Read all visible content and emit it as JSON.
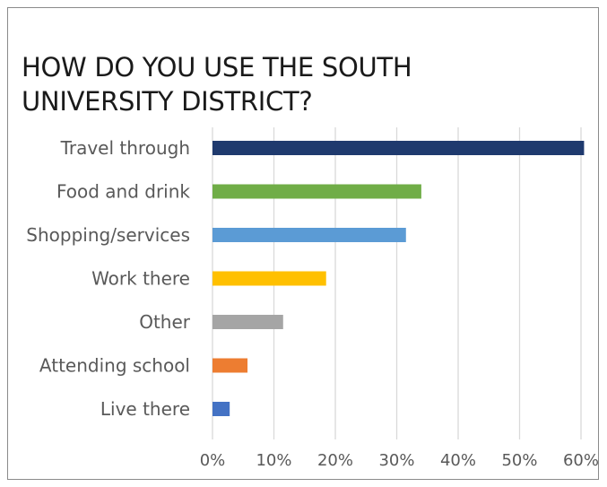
{
  "chart_data": {
    "type": "bar",
    "orientation": "horizontal",
    "title": "HOW DO YOU USE THE SOUTH\nUNIVERSITY DISTRICT?",
    "xlabel": "",
    "ylabel": "",
    "categories": [
      "Travel through",
      "Food and drink",
      "Shopping/services",
      "Work there",
      "Other",
      "Attending school",
      "Live there"
    ],
    "values": [
      60.5,
      34,
      31.5,
      18.5,
      11.5,
      5.7,
      2.8
    ],
    "colors": [
      "#1f3a6e",
      "#70ad47",
      "#5b9bd5",
      "#ffc000",
      "#a5a5a5",
      "#ed7d31",
      "#4472c4"
    ],
    "xlim": [
      0,
      60
    ],
    "x_ticks": [
      0,
      10,
      20,
      30,
      40,
      50,
      60
    ],
    "x_tick_labels": [
      "0%",
      "10%",
      "20%",
      "30%",
      "40%",
      "50%",
      "60%"
    ],
    "grid": true,
    "legend": "none"
  }
}
